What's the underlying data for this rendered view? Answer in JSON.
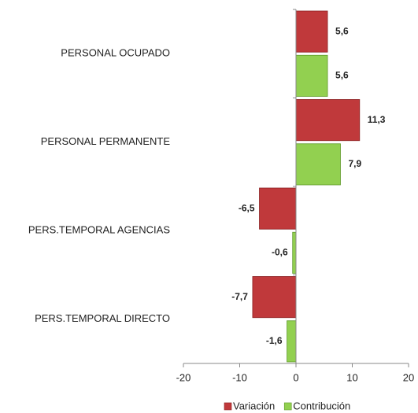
{
  "chart_data": {
    "type": "hbar",
    "categories": [
      "PERSONAL OCUPADO",
      "PERSONAL PERMANENTE",
      "PERS.TEMPORAL AGENCIAS",
      "PERS.TEMPORAL DIRECTO"
    ],
    "series": [
      {
        "name": "Variación",
        "color": "#c0393b",
        "values": [
          5.6,
          11.3,
          -6.5,
          -7.7
        ],
        "value_labels": [
          "5,6",
          "11,3",
          "-6,5",
          "-7,7"
        ]
      },
      {
        "name": "Contribución",
        "color": "#92d050",
        "values": [
          5.6,
          7.9,
          -0.6,
          -1.6
        ],
        "value_labels": [
          "5,6",
          "7,9",
          "-0,6",
          "-1,6"
        ]
      }
    ],
    "xlim": [
      -20,
      20
    ],
    "xticks": [
      -20,
      -10,
      0,
      10,
      20
    ],
    "legend": "bottom"
  }
}
